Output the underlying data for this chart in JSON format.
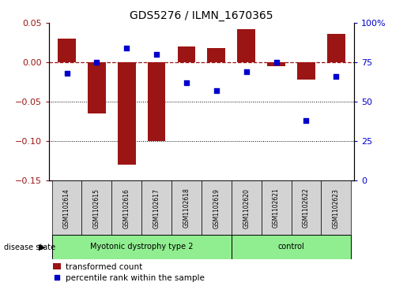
{
  "title": "GDS5276 / ILMN_1670365",
  "samples": [
    "GSM1102614",
    "GSM1102615",
    "GSM1102616",
    "GSM1102617",
    "GSM1102618",
    "GSM1102619",
    "GSM1102620",
    "GSM1102621",
    "GSM1102622",
    "GSM1102623"
  ],
  "bar_values": [
    0.03,
    -0.065,
    -0.13,
    -0.1,
    0.02,
    0.018,
    0.042,
    -0.005,
    -0.022,
    0.036
  ],
  "scatter_values_pct": [
    68,
    75,
    84,
    80,
    62,
    57,
    69,
    75,
    38,
    66
  ],
  "bar_color": "#9B1515",
  "scatter_color": "#0000CC",
  "ylim_left": [
    -0.15,
    0.05
  ],
  "ylim_right": [
    0,
    100
  ],
  "yticks_left": [
    -0.15,
    -0.1,
    -0.05,
    0.0,
    0.05
  ],
  "yticks_right": [
    0,
    25,
    50,
    75,
    100
  ],
  "group1_label": "Myotonic dystrophy type 2",
  "group2_label": "control",
  "group1_indices": [
    0,
    1,
    2,
    3,
    4,
    5
  ],
  "group2_indices": [
    6,
    7,
    8,
    9
  ],
  "disease_state_label": "disease state",
  "legend_bar_label": "transformed count",
  "legend_scatter_label": "percentile rank within the sample",
  "group_color": "#90EE90",
  "sample_box_color": "#D3D3D3",
  "zero_line_color": "#9B1515",
  "grid_color": "#000000",
  "right_axis_color": "#0000CC",
  "title_fontsize": 10
}
